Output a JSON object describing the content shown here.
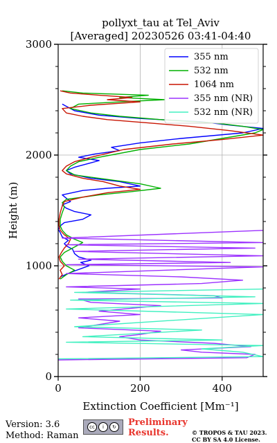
{
  "chart_data": {
    "type": "line",
    "title": "pollyxt_tau at Tel_Aviv",
    "subtitle": "[Averaged] 20230526 03:41-04:40",
    "xlabel": "Extinction Coefficient [Mm⁻¹]",
    "ylabel": "Height (m)",
    "xlim": [
      0,
      500
    ],
    "ylim": [
      0,
      3000
    ],
    "x_ticks": [
      0,
      200,
      400
    ],
    "y_ticks": [
      0,
      1000,
      2000,
      3000
    ],
    "grid": true,
    "legend_position": "top-right",
    "series": [
      {
        "name": "355 nm",
        "color": "#0000ff",
        "points": [
          [
            5,
            900
          ],
          [
            30,
            940
          ],
          [
            60,
            980
          ],
          [
            75,
            1000
          ],
          [
            55,
            1030
          ],
          [
            80,
            1050
          ],
          [
            50,
            1080
          ],
          [
            40,
            1110
          ],
          [
            35,
            1150
          ],
          [
            20,
            1180
          ],
          [
            15,
            1200
          ],
          [
            25,
            1230
          ],
          [
            10,
            1260
          ],
          [
            5,
            1300
          ],
          [
            0,
            1330
          ],
          [
            5,
            1360
          ],
          [
            15,
            1390
          ],
          [
            60,
            1420
          ],
          [
            80,
            1460
          ],
          [
            40,
            1490
          ],
          [
            20,
            1520
          ],
          [
            10,
            1550
          ],
          [
            30,
            1580
          ],
          [
            20,
            1610
          ],
          [
            10,
            1640
          ],
          [
            60,
            1680
          ],
          [
            120,
            1700
          ],
          [
            200,
            1720
          ],
          [
            150,
            1760
          ],
          [
            80,
            1790
          ],
          [
            30,
            1830
          ],
          [
            20,
            1860
          ],
          [
            40,
            1890
          ],
          [
            70,
            1920
          ],
          [
            100,
            1950
          ],
          [
            50,
            1980
          ],
          [
            90,
            2010
          ],
          [
            150,
            2040
          ],
          [
            130,
            2070
          ],
          [
            200,
            2110
          ],
          [
            300,
            2150
          ],
          [
            450,
            2200
          ],
          [
            500,
            2240
          ],
          [
            420,
            2270
          ],
          [
            350,
            2300
          ],
          [
            200,
            2330
          ],
          [
            100,
            2360
          ],
          [
            40,
            2400
          ],
          [
            20,
            2440
          ],
          [
            10,
            2460
          ]
        ]
      },
      {
        "name": "532 nm",
        "color": "#00b000",
        "points": [
          [
            5,
            880
          ],
          [
            20,
            920
          ],
          [
            40,
            960
          ],
          [
            20,
            1000
          ],
          [
            10,
            1040
          ],
          [
            5,
            1080
          ],
          [
            15,
            1120
          ],
          [
            30,
            1150
          ],
          [
            45,
            1180
          ],
          [
            60,
            1210
          ],
          [
            40,
            1240
          ],
          [
            20,
            1280
          ],
          [
            10,
            1320
          ],
          [
            5,
            1360
          ],
          [
            5,
            1420
          ],
          [
            10,
            1480
          ],
          [
            15,
            1530
          ],
          [
            10,
            1570
          ],
          [
            20,
            1600
          ],
          [
            100,
            1640
          ],
          [
            180,
            1670
          ],
          [
            250,
            1700
          ],
          [
            200,
            1740
          ],
          [
            120,
            1780
          ],
          [
            40,
            1820
          ],
          [
            20,
            1860
          ],
          [
            30,
            1900
          ],
          [
            50,
            1940
          ],
          [
            100,
            1980
          ],
          [
            200,
            2050
          ],
          [
            320,
            2100
          ],
          [
            400,
            2150
          ],
          [
            480,
            2200
          ],
          [
            500,
            2230
          ],
          [
            450,
            2260
          ],
          [
            380,
            2290
          ],
          [
            250,
            2320
          ],
          [
            150,
            2350
          ],
          [
            80,
            2380
          ],
          [
            30,
            2420
          ],
          [
            50,
            2460
          ],
          [
            150,
            2480
          ],
          [
            260,
            2500
          ],
          [
            150,
            2520
          ],
          [
            220,
            2540
          ],
          [
            60,
            2560
          ],
          [
            10,
            2580
          ]
        ]
      },
      {
        "name": "1064 nm",
        "color": "#c81400",
        "points": [
          [
            2,
            880
          ],
          [
            10,
            920
          ],
          [
            5,
            960
          ],
          [
            15,
            1000
          ],
          [
            5,
            1040
          ],
          [
            2,
            1080
          ],
          [
            8,
            1120
          ],
          [
            15,
            1160
          ],
          [
            25,
            1200
          ],
          [
            30,
            1240
          ],
          [
            15,
            1280
          ],
          [
            5,
            1320
          ],
          [
            2,
            1360
          ],
          [
            2,
            1420
          ],
          [
            5,
            1480
          ],
          [
            10,
            1540
          ],
          [
            15,
            1580
          ],
          [
            60,
            1620
          ],
          [
            120,
            1660
          ],
          [
            200,
            1690
          ],
          [
            150,
            1720
          ],
          [
            110,
            1760
          ],
          [
            60,
            1790
          ],
          [
            20,
            1830
          ],
          [
            10,
            1860
          ],
          [
            20,
            1900
          ],
          [
            40,
            1940
          ],
          [
            80,
            1980
          ],
          [
            160,
            2050
          ],
          [
            280,
            2100
          ],
          [
            400,
            2140
          ],
          [
            500,
            2180
          ],
          [
            420,
            2220
          ],
          [
            320,
            2260
          ],
          [
            220,
            2290
          ],
          [
            120,
            2320
          ],
          [
            60,
            2350
          ],
          [
            20,
            2380
          ],
          [
            10,
            2420
          ],
          [
            80,
            2450
          ],
          [
            200,
            2480
          ],
          [
            120,
            2500
          ],
          [
            180,
            2520
          ],
          [
            100,
            2540
          ],
          [
            30,
            2560
          ],
          [
            5,
            2580
          ]
        ]
      },
      {
        "name": "355 nm (NR)",
        "color": "#9b30ff",
        "points": [
          [
            0,
            150
          ],
          [
            460,
            170
          ],
          [
            480,
            200
          ],
          [
            350,
            220
          ],
          [
            300,
            240
          ],
          [
            470,
            270
          ],
          [
            380,
            300
          ],
          [
            200,
            330
          ],
          [
            150,
            360
          ],
          [
            200,
            380
          ],
          [
            250,
            410
          ],
          [
            50,
            440
          ],
          [
            100,
            470
          ],
          [
            150,
            500
          ],
          [
            50,
            530
          ],
          [
            200,
            560
          ],
          [
            100,
            590
          ],
          [
            250,
            640
          ],
          [
            80,
            670
          ],
          [
            50,
            700
          ],
          [
            400,
            710
          ],
          [
            380,
            730
          ],
          [
            60,
            760
          ],
          [
            200,
            790
          ],
          [
            20,
            810
          ],
          [
            350,
            840
          ],
          [
            450,
            870
          ],
          [
            300,
            900
          ],
          [
            20,
            930
          ],
          [
            500,
            990
          ],
          [
            20,
            1010
          ],
          [
            420,
            1030
          ],
          [
            50,
            1060
          ],
          [
            500,
            1090
          ],
          [
            40,
            1130
          ],
          [
            480,
            1160
          ],
          [
            20,
            1190
          ],
          [
            500,
            1210
          ],
          [
            10,
            1250
          ],
          [
            500,
            1320
          ]
        ]
      },
      {
        "name": "532 nm (NR)",
        "color": "#40f0c0",
        "points": [
          [
            0,
            160
          ],
          [
            500,
            180
          ],
          [
            450,
            220
          ],
          [
            350,
            250
          ],
          [
            500,
            280
          ],
          [
            20,
            310
          ],
          [
            400,
            330
          ],
          [
            60,
            360
          ],
          [
            350,
            420
          ],
          [
            40,
            450
          ],
          [
            500,
            560
          ],
          [
            20,
            610
          ],
          [
            500,
            660
          ],
          [
            30,
            690
          ],
          [
            480,
            720
          ],
          [
            40,
            760
          ],
          [
            500,
            790
          ]
        ]
      }
    ]
  },
  "footer": {
    "version": "Version: 3.6",
    "method": "Method: Raman",
    "cc_icons": [
      "cc-icon",
      "by-icon",
      "sa-icon"
    ],
    "cc_letters": [
      "cc",
      "i",
      "↻"
    ],
    "preliminary_line1": "Preliminary",
    "preliminary_line2": "Results.",
    "copyright_line1": "© TROPOS & TAU 2023.",
    "copyright_line2": "CC BY SA 4.0 License."
  }
}
